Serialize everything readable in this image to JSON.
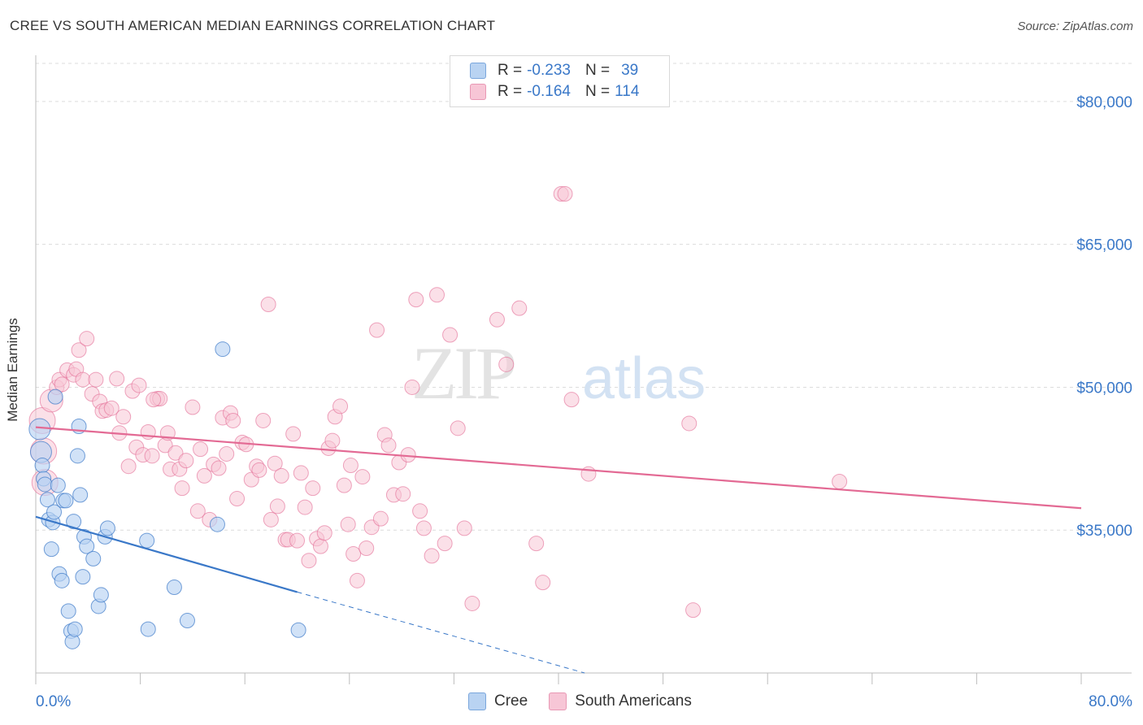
{
  "title": "CREE VS SOUTH AMERICAN MEDIAN EARNINGS CORRELATION CHART",
  "source": "Source: ZipAtlas.com",
  "colors": {
    "cree": "#3a78c8",
    "cree_fill": "#b9d3f2",
    "south": "#e36a94",
    "south_fill": "#f7c6d6",
    "axis_text": "#3a78c8"
  },
  "legend": {
    "rows": [
      {
        "r_label": "R =",
        "r_value": "-0.233",
        "n_label": "N =",
        "n_value": "39"
      },
      {
        "r_label": "R =",
        "r_value": "-0.164",
        "n_label": "N =",
        "n_value": "114"
      }
    ]
  },
  "bottom_legend": [
    "Cree",
    "South Americans"
  ],
  "watermark": {
    "left": "ZIP",
    "right": "atlas"
  },
  "chart_data": {
    "type": "scatter",
    "title": "CREE VS SOUTH AMERICAN MEDIAN EARNINGS CORRELATION CHART",
    "xlabel": "",
    "ylabel": "Median Earnings",
    "xlim": [
      0,
      80
    ],
    "ylim": [
      20000,
      84000
    ],
    "x_tick_labels": [
      "0.0%",
      "80.0%"
    ],
    "y_ticks": [
      35000,
      50000,
      65000,
      80000
    ],
    "y_tick_labels": [
      "$35,000",
      "$50,000",
      "$65,000",
      "$80,000"
    ],
    "grid": true,
    "series": [
      {
        "name": "Cree",
        "r": -0.233,
        "n": 39,
        "trend": {
          "x_start": 0,
          "y_start": 36400,
          "x_solid_end": 20,
          "y_solid_end": 28500,
          "x_dash_end": 42,
          "y_dash_end": 20000
        },
        "points": [
          [
            0.3,
            45600
          ],
          [
            0.4,
            43200
          ],
          [
            0.5,
            41800
          ],
          [
            0.6,
            40400
          ],
          [
            0.7,
            39800
          ],
          [
            0.9,
            38200
          ],
          [
            1.0,
            36100
          ],
          [
            1.2,
            33000
          ],
          [
            1.3,
            35800
          ],
          [
            1.4,
            36900
          ],
          [
            1.5,
            49000
          ],
          [
            1.7,
            39700
          ],
          [
            1.8,
            30400
          ],
          [
            2.0,
            29700
          ],
          [
            2.1,
            38100
          ],
          [
            2.3,
            38100
          ],
          [
            2.5,
            26500
          ],
          [
            2.7,
            24400
          ],
          [
            2.8,
            23300
          ],
          [
            2.9,
            35900
          ],
          [
            3.0,
            24600
          ],
          [
            3.2,
            42800
          ],
          [
            3.3,
            45900
          ],
          [
            3.4,
            38700
          ],
          [
            3.6,
            30100
          ],
          [
            3.7,
            34300
          ],
          [
            3.9,
            33300
          ],
          [
            4.4,
            32000
          ],
          [
            4.8,
            27000
          ],
          [
            5.0,
            28200
          ],
          [
            5.3,
            34300
          ],
          [
            5.5,
            35200
          ],
          [
            8.5,
            33900
          ],
          [
            8.6,
            24600
          ],
          [
            10.6,
            29000
          ],
          [
            11.6,
            25500
          ],
          [
            13.9,
            35600
          ],
          [
            14.3,
            54000
          ],
          [
            20.1,
            24500
          ]
        ]
      },
      {
        "name": "South Americans",
        "r": -0.164,
        "n": 114,
        "trend": {
          "x_start": 0,
          "y_start": 45800,
          "x_end": 80,
          "y_end": 37300
        },
        "points": [
          [
            0.5,
            46500
          ],
          [
            0.6,
            43300
          ],
          [
            0.7,
            40000
          ],
          [
            1.2,
            48600
          ],
          [
            1.6,
            50000
          ],
          [
            1.8,
            50800
          ],
          [
            2.0,
            50300
          ],
          [
            2.4,
            51800
          ],
          [
            2.9,
            51300
          ],
          [
            3.1,
            51900
          ],
          [
            3.3,
            53900
          ],
          [
            3.6,
            50800
          ],
          [
            3.9,
            55100
          ],
          [
            4.3,
            49300
          ],
          [
            4.6,
            50800
          ],
          [
            4.9,
            48500
          ],
          [
            5.1,
            47500
          ],
          [
            5.4,
            47600
          ],
          [
            5.8,
            47800
          ],
          [
            6.2,
            50900
          ],
          [
            6.4,
            45200
          ],
          [
            6.7,
            46900
          ],
          [
            7.1,
            41700
          ],
          [
            7.4,
            49600
          ],
          [
            7.7,
            43700
          ],
          [
            7.9,
            50200
          ],
          [
            8.2,
            42900
          ],
          [
            8.6,
            45300
          ],
          [
            8.9,
            42800
          ],
          [
            9.3,
            48800
          ],
          [
            9.5,
            48800
          ],
          [
            9.9,
            43900
          ],
          [
            10.1,
            45200
          ],
          [
            10.3,
            41400
          ],
          [
            10.7,
            43100
          ],
          [
            11.0,
            41400
          ],
          [
            11.2,
            39400
          ],
          [
            11.5,
            42300
          ],
          [
            12.0,
            47900
          ],
          [
            12.4,
            37000
          ],
          [
            12.6,
            43500
          ],
          [
            12.9,
            40700
          ],
          [
            13.3,
            36100
          ],
          [
            13.6,
            41900
          ],
          [
            14.0,
            41500
          ],
          [
            14.3,
            46800
          ],
          [
            14.6,
            43000
          ],
          [
            14.9,
            47300
          ],
          [
            15.1,
            46500
          ],
          [
            15.4,
            38300
          ],
          [
            15.8,
            44200
          ],
          [
            16.1,
            44000
          ],
          [
            16.5,
            40300
          ],
          [
            16.9,
            41700
          ],
          [
            17.1,
            41300
          ],
          [
            17.4,
            46500
          ],
          [
            17.8,
            58700
          ],
          [
            18.0,
            36100
          ],
          [
            18.3,
            42000
          ],
          [
            18.5,
            37500
          ],
          [
            18.8,
            40700
          ],
          [
            19.1,
            34000
          ],
          [
            19.3,
            34000
          ],
          [
            19.7,
            45100
          ],
          [
            20.0,
            33900
          ],
          [
            20.3,
            41000
          ],
          [
            20.6,
            37400
          ],
          [
            20.9,
            31800
          ],
          [
            21.2,
            39400
          ],
          [
            21.5,
            34100
          ],
          [
            21.8,
            33300
          ],
          [
            22.1,
            34700
          ],
          [
            22.4,
            43600
          ],
          [
            22.7,
            44400
          ],
          [
            22.9,
            46900
          ],
          [
            23.3,
            48000
          ],
          [
            23.6,
            39700
          ],
          [
            23.9,
            35600
          ],
          [
            24.1,
            41800
          ],
          [
            24.3,
            32500
          ],
          [
            24.6,
            29700
          ],
          [
            25.0,
            40600
          ],
          [
            25.3,
            33100
          ],
          [
            25.7,
            35300
          ],
          [
            26.1,
            56000
          ],
          [
            26.4,
            36200
          ],
          [
            26.7,
            45000
          ],
          [
            27.0,
            43900
          ],
          [
            27.4,
            38700
          ],
          [
            27.8,
            42100
          ],
          [
            28.1,
            38800
          ],
          [
            28.5,
            42900
          ],
          [
            28.8,
            50000
          ],
          [
            29.1,
            59200
          ],
          [
            29.4,
            37000
          ],
          [
            29.7,
            35200
          ],
          [
            30.3,
            32300
          ],
          [
            30.7,
            59700
          ],
          [
            31.3,
            33600
          ],
          [
            31.7,
            55500
          ],
          [
            32.3,
            45700
          ],
          [
            32.8,
            35200
          ],
          [
            33.4,
            27300
          ],
          [
            35.3,
            57100
          ],
          [
            36.0,
            52400
          ],
          [
            37.0,
            58300
          ],
          [
            38.3,
            33600
          ],
          [
            38.8,
            29500
          ],
          [
            40.2,
            70300
          ],
          [
            40.5,
            70300
          ],
          [
            41.0,
            48700
          ],
          [
            42.3,
            40900
          ],
          [
            50.0,
            46200
          ],
          [
            50.3,
            26600
          ],
          [
            61.5,
            40100
          ],
          [
            9.0,
            48700
          ]
        ]
      }
    ]
  }
}
